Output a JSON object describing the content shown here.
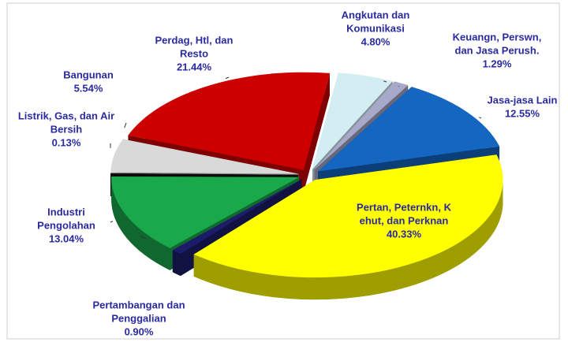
{
  "chart_data": {
    "type": "pie3d",
    "categories": [
      [
        "Angkutan dan",
        "Komunikasi"
      ],
      [
        "Keuangn, Perswn,",
        "dan Jasa Perush."
      ],
      [
        "Jasa-jasa Lain"
      ],
      [
        "Pertan, Peternkn, K",
        "ehut, dan Perknan"
      ],
      [
        "Pertambangan dan",
        "Penggalian"
      ],
      [
        "Industri",
        "Pengolahan"
      ],
      [
        "Listrik, Gas, dan Air",
        "Bersih"
      ],
      [
        "Bangunan"
      ],
      [
        "Perdag, Htl,  dan",
        "Resto"
      ]
    ],
    "values": [
      4.8,
      1.29,
      12.55,
      40.33,
      0.9,
      13.04,
      0.13,
      5.54,
      21.44
    ],
    "value_labels": [
      "4.80%",
      "1.29%",
      "12.55%",
      "40.33%",
      "0.90%",
      "13.04%",
      "0.13%",
      "5.54%",
      "21.44%"
    ],
    "colors": [
      "#d3eef2",
      "#a8a8c8",
      "#1466c0",
      "#ffff00",
      "#1c1c6a",
      "#19a84a",
      "#111111",
      "#d9d9d9",
      "#cc0000"
    ]
  }
}
